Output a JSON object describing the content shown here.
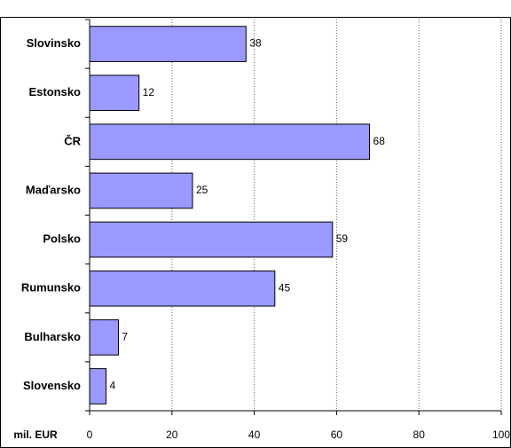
{
  "chart_data": {
    "type": "bar",
    "orientation": "horizontal",
    "x_label": "mil. EUR",
    "categories": [
      "Slovinsko",
      "Estonsko",
      "ČR",
      "Maďarsko",
      "Polsko",
      "Rumunsko",
      "Bulharsko",
      "Slovensko"
    ],
    "values": [
      38,
      12,
      68,
      25,
      59,
      45,
      7,
      4
    ],
    "color": "#9999ff",
    "xlim": [
      0,
      100
    ],
    "xticks": [
      0,
      20,
      40,
      60,
      80,
      100
    ],
    "grid": true
  }
}
